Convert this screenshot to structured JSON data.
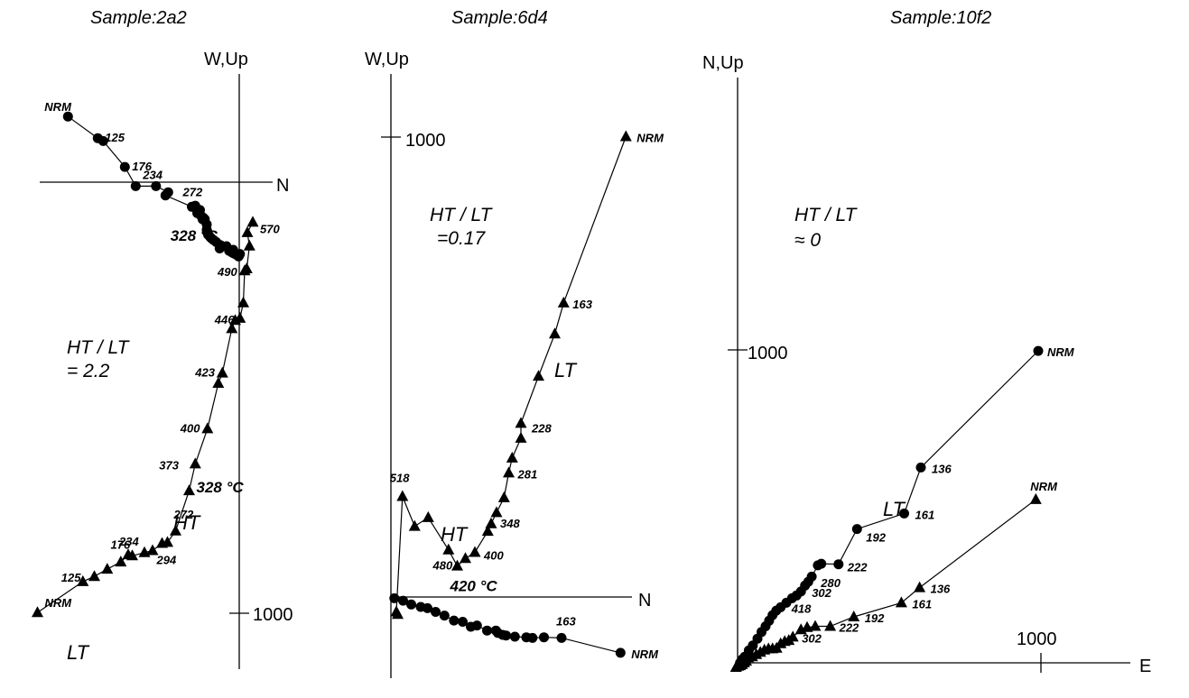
{
  "chart_data": [
    {
      "type": "scatter",
      "title": "Sample:2a2",
      "axis_labels": {
        "vertical": "W,Up",
        "horizontal": "N"
      },
      "tick_labels": [
        "1000"
      ],
      "ratio_text": [
        "HT / LT",
        "= 2.2"
      ],
      "series": [
        {
          "name": "",
          "marker": "circle",
          "x": [
            -1265,
            -1045,
            -1005,
            -845,
            -765,
            -615,
            -525,
            -545,
            -350,
            -325,
            -325,
            -315,
            -310,
            -300,
            -290,
            -280,
            -270,
            -265,
            -255,
            -240,
            -240,
            -235,
            -230,
            -215,
            -205,
            -190,
            -170,
            -145,
            -140,
            -95,
            -75,
            -55,
            -45,
            -40,
            -25,
            -10,
            -5,
            0,
            5
          ],
          "y": [
            636,
            426,
            398,
            148,
            -38,
            -38,
            -98,
            -128,
            -238,
            -248,
            -228,
            -258,
            -300,
            -268,
            -270,
            -330,
            -360,
            -345,
            -358,
            -410,
            -460,
            -480,
            -508,
            -532,
            -545,
            -560,
            -580,
            -642,
            -610,
            -620,
            -665,
            -680,
            -655,
            -690,
            -700,
            -712,
            -720,
            -708,
            -695
          ]
        },
        {
          "name": "",
          "marker": "triangle",
          "x": [
            100,
            60,
            75,
            55,
            40,
            30,
            5,
            -30,
            -55,
            -125,
            -155,
            -235,
            -325,
            -370,
            -470,
            -530,
            -570,
            -640,
            -700,
            -790,
            -820,
            -875,
            -975,
            -1070,
            -1155,
            -1490
          ],
          "y": [
            -388,
            -488,
            -618,
            -838,
            -858,
            -1168,
            -1318,
            -1338,
            -1418,
            -1848,
            -1948,
            -2388,
            -2728,
            -2988,
            -3378,
            -3488,
            -3498,
            -3568,
            -3588,
            -3618,
            -3608,
            -3678,
            -3748,
            -3818,
            -3868,
            -4168
          ]
        }
      ],
      "point_labels": [
        {
          "text": "NRM",
          "series": "circle",
          "index": 0
        },
        {
          "text": "125",
          "series": "circle",
          "index": 1
        },
        {
          "text": "176",
          "series": "circle",
          "index": 3
        },
        {
          "text": "234",
          "series": "circle",
          "index": 4
        },
        {
          "text": "272",
          "series": "circle",
          "index": 8
        },
        {
          "text": "328 °C",
          "series": "circle",
          "index": 18
        },
        {
          "text": "570",
          "series": "triangle",
          "index": 0
        },
        {
          "text": "490",
          "series": "triangle",
          "index": 4
        },
        {
          "text": "446",
          "series": "triangle",
          "index": 6
        },
        {
          "text": "423",
          "series": "triangle",
          "index": 9
        },
        {
          "text": "400",
          "series": "triangle",
          "index": 11
        },
        {
          "text": "373",
          "series": "triangle",
          "index": 12
        },
        {
          "text": "328 °C",
          "series": "triangle",
          "index": 13
        },
        {
          "text": "294",
          "series": "triangle",
          "index": 15
        },
        {
          "text": "272",
          "series": "triangle",
          "index": 14
        },
        {
          "text": "234",
          "series": "triangle",
          "index": 18
        },
        {
          "text": "176",
          "series": "triangle",
          "index": 19
        },
        {
          "text": "125",
          "series": "triangle",
          "index": 24
        },
        {
          "text": "NRM",
          "series": "triangle",
          "index": 25
        }
      ],
      "annotations": [
        "HT",
        "LT"
      ]
    },
    {
      "type": "scatter",
      "title": "Sample:6d4",
      "axis_labels": {
        "vertical": "W,Up",
        "horizontal": "N"
      },
      "tick_labels": [
        "1000"
      ],
      "ratio_text": [
        "HT / LT",
        "=0.17"
      ],
      "series": [
        {
          "name": "",
          "marker": "circle",
          "x": [
            25,
            90,
            150,
            220,
            270,
            330,
            395,
            465,
            530,
            590,
            635,
            710,
            775,
            790,
            825,
            850,
            915,
            1000,
            1045,
            1130,
            1260,
            1695
          ],
          "y": [
            -10,
            -30,
            -60,
            -80,
            -90,
            -120,
            -150,
            -190,
            -200,
            -240,
            -230,
            -270,
            -270,
            -290,
            -305,
            -310,
            -320,
            -325,
            -330,
            -325,
            -330,
            -450
          ]
        },
        {
          "name": "",
          "marker": "triangle",
          "x": [
            1735,
            1275,
            1210,
            1090,
            960,
            960,
            895,
            870,
            835,
            780,
            740,
            715,
            620,
            550,
            490,
            425,
            275,
            175,
            85,
            40,
            50
          ],
          "y": [
            3710,
            2370,
            2120,
            1780,
            1400,
            1280,
            1120,
            1000,
            800,
            680,
            590,
            530,
            360,
            310,
            250,
            380,
            640,
            570,
            810,
            -120,
            -140
          ]
        }
      ],
      "point_labels": [
        {
          "text": "NRM",
          "series": "triangle",
          "index": 0
        },
        {
          "text": "163",
          "series": "triangle",
          "index": 1
        },
        {
          "text": "228",
          "series": "triangle",
          "index": 4
        },
        {
          "text": "281",
          "series": "triangle",
          "index": 7
        },
        {
          "text": "348",
          "series": "triangle",
          "index": 10
        },
        {
          "text": "400",
          "series": "triangle",
          "index": 12
        },
        {
          "text": "480",
          "series": "triangle",
          "index": 13
        },
        {
          "text": "420 °C",
          "series": "triangle",
          "index": 14
        },
        {
          "text": "518",
          "series": "triangle",
          "index": 18
        },
        {
          "text": "163",
          "series": "circle",
          "index": 20
        },
        {
          "text": "NRM",
          "series": "circle",
          "index": 21
        }
      ],
      "annotations": [
        "LT",
        "HT"
      ]
    },
    {
      "type": "scatter",
      "title": "Sample:10f2",
      "axis_labels": {
        "vertical": "N,Up",
        "horizontal": "E"
      },
      "tick_labels": [
        "1000",
        "1000"
      ],
      "ratio_text": [
        "HT / LT",
        "≈ 0"
      ],
      "series": [
        {
          "name": "",
          "marker": "circle",
          "x": [
            1480,
            902,
            820,
            588,
            497,
            412,
            395,
            365,
            348,
            332,
            312,
            290,
            268,
            240,
            212,
            190,
            172,
            155,
            138,
            118,
            98,
            75,
            55,
            35,
            22,
            12
          ],
          "y": [
            2778,
            1740,
            1330,
            1192,
            878,
            883,
            868,
            768,
            722,
            688,
            635,
            600,
            575,
            535,
            495,
            465,
            425,
            375,
            325,
            275,
            215,
            155,
            110,
            55,
            30,
            0
          ]
        },
        {
          "name": "",
          "marker": "triangle",
          "x": [
            1468,
            896,
            806,
            572,
            456,
            382,
            342,
            312,
            272,
            252,
            232,
            212,
            192,
            172,
            152,
            132,
            112,
            92,
            72,
            52,
            42,
            32,
            22,
            12,
            2,
            -8
          ],
          "y": [
            1455,
            670,
            535,
            410,
            325,
            325,
            315,
            295,
            230,
            200,
            190,
            170,
            130,
            125,
            125,
            115,
            95,
            75,
            55,
            45,
            15,
            0,
            -15,
            -25,
            -30,
            -40
          ]
        }
      ],
      "point_labels": [
        {
          "text": "NRM",
          "series": "circle",
          "index": 0
        },
        {
          "text": "136",
          "series": "circle",
          "index": 1
        },
        {
          "text": "161",
          "series": "circle",
          "index": 2
        },
        {
          "text": "192",
          "series": "circle",
          "index": 3
        },
        {
          "text": "222",
          "series": "circle",
          "index": 4
        },
        {
          "text": "280",
          "series": "circle",
          "index": 8
        },
        {
          "text": "302",
          "series": "circle",
          "index": 10
        },
        {
          "text": "418",
          "series": "circle",
          "index": 14
        },
        {
          "text": "NRM",
          "series": "triangle",
          "index": 0
        },
        {
          "text": "136",
          "series": "triangle",
          "index": 1
        },
        {
          "text": "161",
          "series": "triangle",
          "index": 2
        },
        {
          "text": "192",
          "series": "triangle",
          "index": 3
        },
        {
          "text": "222",
          "series": "triangle",
          "index": 4
        },
        {
          "text": "302",
          "series": "triangle",
          "index": 8
        }
      ],
      "annotations": [
        "LT"
      ]
    }
  ]
}
